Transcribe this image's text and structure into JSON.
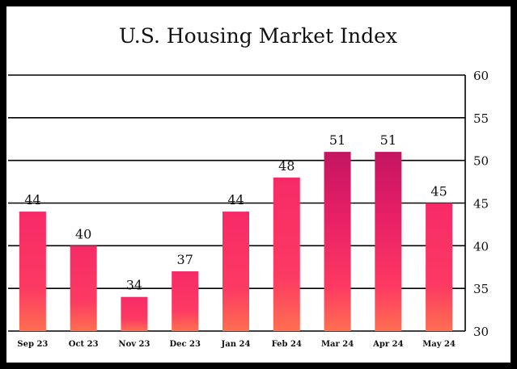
{
  "chart_data": {
    "type": "bar",
    "title": "U.S. Housing Market Index",
    "xlabel": "",
    "ylabel": "",
    "categories": [
      "Sep 23",
      "Oct 23",
      "Nov 23",
      "Dec 23",
      "Jan 24",
      "Feb 24",
      "Mar 24",
      "Apr 24",
      "May 24"
    ],
    "values": [
      44,
      40,
      34,
      37,
      44,
      48,
      51,
      51,
      45
    ],
    "data_labels": [
      "44",
      "40",
      "34",
      "37",
      "44",
      "48",
      "51",
      "51",
      "45"
    ],
    "ylim": [
      30,
      60
    ],
    "yticks": [
      "30",
      "35",
      "40",
      "45",
      "50",
      "55",
      "60"
    ],
    "y_axis_position": "right",
    "grid": true,
    "legend": "none",
    "colors": {
      "background": "#ffffff",
      "frame": "#000000",
      "grid": "#000000",
      "bar_top_default": "#f72a67",
      "bar_bottom": "#ff6f50",
      "bar_top_highlight": "#c41562"
    },
    "highlighted_categories": [
      "Mar 24",
      "Apr 24"
    ]
  }
}
